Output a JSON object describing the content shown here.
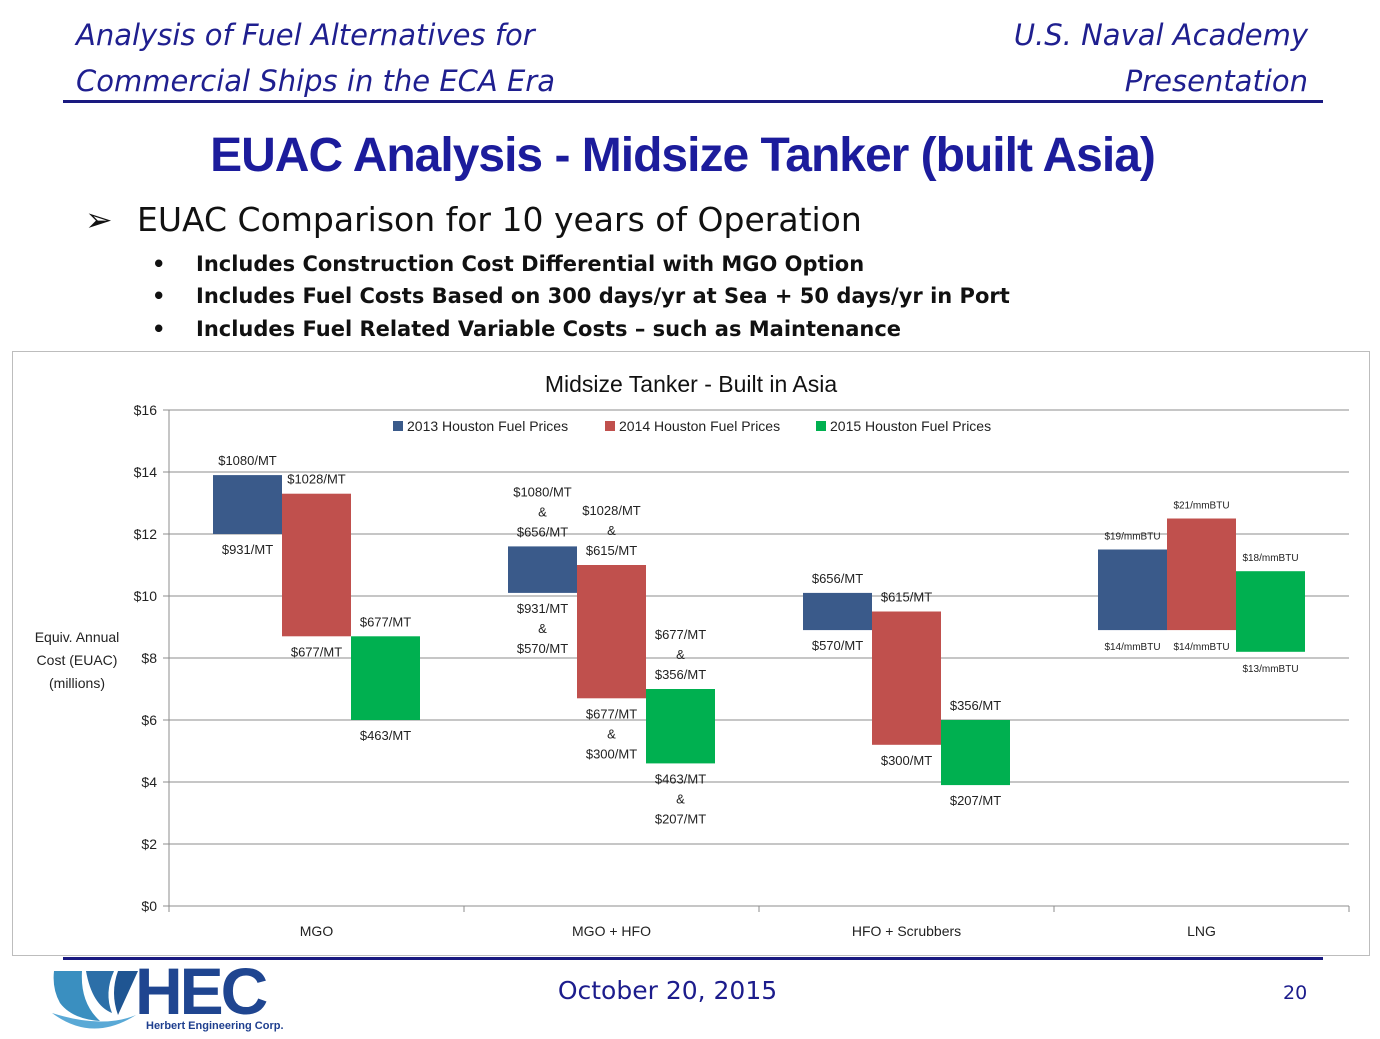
{
  "header": {
    "left_line1": "Analysis of Fuel Alternatives for",
    "left_line2": "Commercial Ships in the ECA Era",
    "right_line1": "U.S. Naval Academy",
    "right_line2": "Presentation"
  },
  "slide": {
    "title": "EUAC Analysis - Midsize Tanker (built Asia)",
    "bullet_main": "EUAC Comparison for 10 years of Operation",
    "bullet_icon": "arrow-bullet-icon",
    "sub_bullets": [
      "Includes Construction Cost Differential with MGO Option",
      "Includes Fuel Costs Based on 300 days/yr at Sea + 50 days/yr in Port",
      "Includes Fuel Related Variable Costs – such as Maintenance"
    ]
  },
  "footer": {
    "date": "October 20, 2015",
    "page": "20",
    "logo_text": "HEC",
    "logo_subtitle": "Herbert Engineering Corp."
  },
  "colors": {
    "header_text": "#1f1f8f",
    "title_text": "#1c1c9c",
    "series_2013": "#3a5a8a",
    "series_2014": "#c0504d",
    "series_2015": "#00b050"
  },
  "chart_data": {
    "type": "bar",
    "subtype": "floating range bar",
    "title": "Midsize Tanker - Built in Asia",
    "ylabel_lines": [
      "Equiv. Annual",
      "Cost (EUAC)",
      "(millions)"
    ],
    "xlabel": "",
    "ylim": [
      0,
      16
    ],
    "yticks": [
      "$0",
      "$2",
      "$4",
      "$6",
      "$8",
      "$10",
      "$12",
      "$14",
      "$16"
    ],
    "grid": true,
    "legend_position": "top",
    "categories": [
      "MGO",
      "MGO + HFO",
      "HFO + Scrubbers",
      "LNG"
    ],
    "series": [
      {
        "name": "2013 Houston Fuel Prices",
        "color": "#3a5a8a",
        "ranges": [
          [
            12.0,
            13.9
          ],
          [
            10.1,
            11.6
          ],
          [
            8.9,
            10.1
          ],
          [
            8.9,
            11.5
          ]
        ],
        "top_labels": [
          "$1080/MT",
          "$1080/MT|&|$656/MT",
          "$656/MT",
          "$19/mmBTU"
        ],
        "bottom_labels": [
          "$931/MT",
          "$931/MT|&|$570/MT",
          "$570/MT",
          "$14/mmBTU"
        ]
      },
      {
        "name": "2014 Houston Fuel Prices",
        "color": "#c0504d",
        "ranges": [
          [
            8.7,
            13.3
          ],
          [
            6.7,
            11.0
          ],
          [
            5.2,
            9.5
          ],
          [
            8.9,
            12.5
          ]
        ],
        "top_labels": [
          "$1028/MT",
          "$1028/MT|&|$615/MT",
          "$615/MT",
          "$21/mmBTU"
        ],
        "bottom_labels": [
          "$677/MT",
          "$677/MT|&|$300/MT",
          "$300/MT",
          "$14/mmBTU"
        ]
      },
      {
        "name": "2015 Houston Fuel Prices",
        "color": "#00b050",
        "ranges": [
          [
            6.0,
            8.7
          ],
          [
            4.6,
            7.0
          ],
          [
            3.9,
            6.0
          ],
          [
            8.2,
            10.8
          ]
        ],
        "top_labels": [
          "$677/MT",
          "$677/MT|&|$356/MT",
          "$356/MT",
          "$18/mmBTU"
        ],
        "bottom_labels": [
          "$463/MT",
          "$463/MT|&|$207/MT",
          "$207/MT",
          "$13/mmBTU"
        ]
      }
    ]
  }
}
